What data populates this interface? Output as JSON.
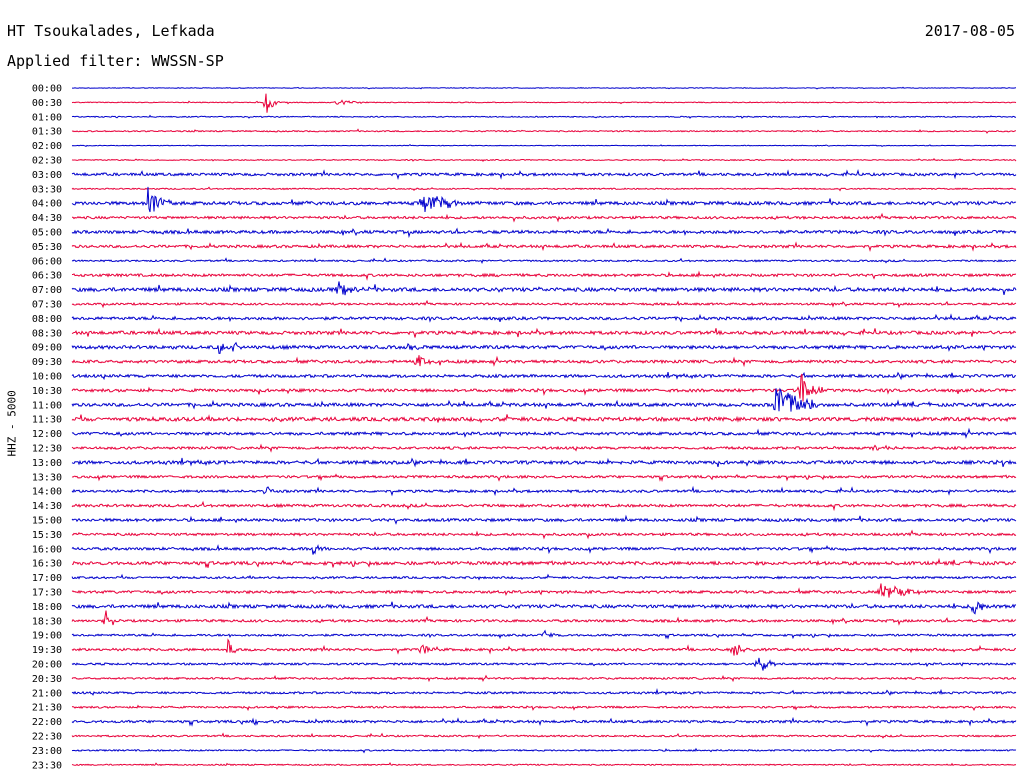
{
  "header": {
    "station": "HT Tsoukalades, Lefkada",
    "date": "2017-08-05",
    "filter": "Applied filter: WWSSN-SP"
  },
  "chart_data": {
    "type": "line",
    "title": "HT Tsoukalades, Lefkada",
    "date": "2017-08-05",
    "filter": "WWSSN-SP",
    "ylabel": "HHZ - 5000",
    "trace_colors": [
      "#0000cc",
      "#e8003a"
    ],
    "rows": [
      "00:00",
      "00:30",
      "01:00",
      "01:30",
      "02:00",
      "02:30",
      "03:00",
      "03:30",
      "04:00",
      "04:30",
      "05:00",
      "05:30",
      "06:00",
      "06:30",
      "07:00",
      "07:30",
      "08:00",
      "08:30",
      "09:00",
      "09:30",
      "10:00",
      "10:30",
      "11:00",
      "11:30",
      "12:00",
      "12:30",
      "13:00",
      "13:30",
      "14:00",
      "14:30",
      "15:00",
      "15:30",
      "16:00",
      "16:30",
      "17:00",
      "17:30",
      "18:00",
      "18:30",
      "19:00",
      "19:30",
      "20:00",
      "20:30",
      "21:00",
      "21:30",
      "22:00",
      "22:30",
      "23:00",
      "23:30"
    ],
    "noise": [
      0.3,
      0.4,
      0.5,
      0.6,
      0.3,
      0.5,
      1.3,
      0.6,
      1.6,
      1.2,
      1.5,
      1.3,
      0.8,
      1.3,
      1.8,
      1.0,
      1.4,
      1.6,
      1.6,
      1.4,
      1.4,
      1.4,
      1.6,
      1.8,
      1.4,
      1.2,
      1.6,
      1.2,
      1.2,
      1.3,
      1.4,
      1.2,
      1.3,
      1.6,
      1.0,
      1.3,
      1.6,
      1.2,
      1.0,
      1.2,
      1.0,
      0.9,
      1.0,
      0.9,
      1.2,
      0.8,
      0.7,
      0.6
    ],
    "events": [
      {
        "row": 1,
        "t": 0.205,
        "amp": 14,
        "dur": 0.01
      },
      {
        "row": 1,
        "t": 0.28,
        "amp": 3,
        "dur": 0.03
      },
      {
        "row": 8,
        "t": 0.08,
        "amp": 18,
        "dur": 0.02
      },
      {
        "row": 8,
        "t": 0.37,
        "amp": 11,
        "dur": 0.04
      },
      {
        "row": 14,
        "t": 0.28,
        "amp": 10,
        "dur": 0.03
      },
      {
        "row": 18,
        "t": 0.155,
        "amp": 7,
        "dur": 0.01
      },
      {
        "row": 18,
        "t": 0.17,
        "amp": 7,
        "dur": 0.01
      },
      {
        "row": 18,
        "t": 0.355,
        "amp": 6,
        "dur": 0.01
      },
      {
        "row": 19,
        "t": 0.365,
        "amp": 8,
        "dur": 0.015
      },
      {
        "row": 21,
        "t": 0.77,
        "amp": 22,
        "dur": 0.02
      },
      {
        "row": 22,
        "t": 0.745,
        "amp": 22,
        "dur": 0.04
      },
      {
        "row": 25,
        "t": 0.85,
        "amp": 4,
        "dur": 0.02
      },
      {
        "row": 28,
        "t": 0.205,
        "amp": 8,
        "dur": 0.01
      },
      {
        "row": 32,
        "t": 0.255,
        "amp": 8,
        "dur": 0.01
      },
      {
        "row": 35,
        "t": 0.855,
        "amp": 9,
        "dur": 0.04
      },
      {
        "row": 36,
        "t": 0.955,
        "amp": 14,
        "dur": 0.01
      },
      {
        "row": 37,
        "t": 0.035,
        "amp": 13,
        "dur": 0.01
      },
      {
        "row": 38,
        "t": 0.5,
        "amp": 6,
        "dur": 0.01
      },
      {
        "row": 39,
        "t": 0.165,
        "amp": 12,
        "dur": 0.01
      },
      {
        "row": 39,
        "t": 0.37,
        "amp": 6,
        "dur": 0.015
      },
      {
        "row": 39,
        "t": 0.7,
        "amp": 11,
        "dur": 0.01
      },
      {
        "row": 40,
        "t": 0.725,
        "amp": 13,
        "dur": 0.015
      },
      {
        "row": 44,
        "t": 0.19,
        "amp": 4,
        "dur": 0.01
      }
    ]
  }
}
